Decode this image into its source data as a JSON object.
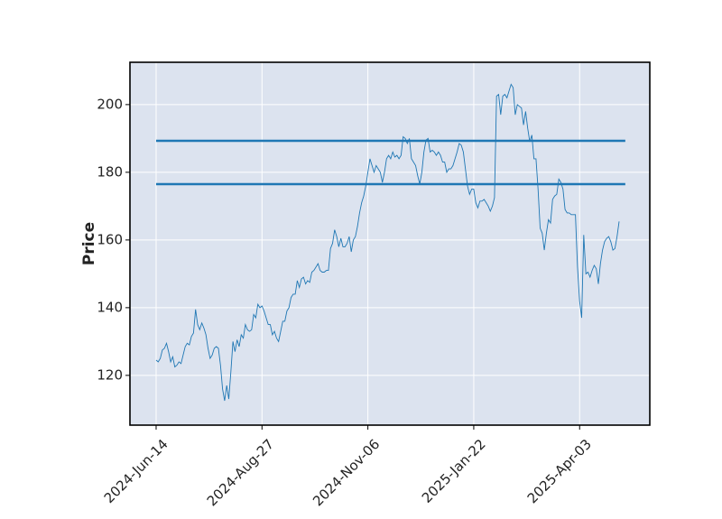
{
  "chart_data": {
    "type": "line",
    "ylabel": "Price",
    "series": [
      {
        "color": "#1f77b4",
        "values": [
          124.5,
          124,
          125,
          127.5,
          128,
          129.5,
          127,
          124,
          125.5,
          122.5,
          123,
          124,
          123.5,
          126,
          128.5,
          129.5,
          129,
          131.5,
          132.5,
          139.5,
          135,
          133.5,
          135.5,
          134,
          132,
          128,
          125,
          126,
          128,
          128.5,
          128,
          123,
          116,
          112.5,
          117,
          113,
          121,
          130,
          127,
          130.5,
          128.5,
          132,
          131,
          135,
          133.5,
          133,
          133.5,
          138,
          137,
          141,
          140,
          140.5,
          139,
          137,
          135,
          135,
          132,
          133,
          131,
          130,
          133,
          136,
          136,
          139,
          140,
          143,
          144,
          144,
          148,
          146,
          148.5,
          149,
          147,
          148,
          147.5,
          150.5,
          151,
          152,
          153,
          151,
          150.5,
          150.5,
          151,
          151,
          157.5,
          159,
          163,
          161,
          158,
          160.5,
          158,
          158,
          159,
          161,
          156.5,
          160,
          161,
          164,
          168,
          171,
          173,
          176,
          180,
          184,
          182,
          180,
          182,
          181,
          180,
          177,
          180,
          184,
          185,
          184,
          186,
          184.5,
          185,
          184,
          185,
          190.5,
          190,
          188.5,
          190,
          184,
          183,
          182,
          179,
          176.5,
          180,
          186,
          189.5,
          190,
          186,
          186.5,
          186,
          185,
          186,
          185,
          183,
          183,
          180,
          181,
          181,
          182,
          184,
          186,
          188.5,
          188,
          186,
          181,
          176,
          173.5,
          175,
          175,
          171,
          169.5,
          171.5,
          171.5,
          172,
          171,
          170,
          168.5,
          170,
          172.5,
          202.5,
          203,
          197,
          202.5,
          203,
          202,
          204,
          206,
          205,
          197,
          200,
          199.5,
          199,
          194,
          198,
          193,
          189,
          191,
          184,
          184,
          175,
          163.5,
          162,
          157,
          162,
          166,
          165,
          172,
          173,
          173.5,
          178,
          177,
          175,
          169,
          168,
          168,
          167.5,
          167.5,
          167.5,
          152,
          142,
          137,
          161.5,
          150,
          150.5,
          149,
          151,
          152.5,
          151.5,
          147,
          153,
          157,
          159.5,
          160.5,
          161,
          159.5,
          157,
          157.5,
          161,
          165.5
        ]
      }
    ],
    "hlines": [
      {
        "value": 189.3,
        "color": "#1f77b4"
      },
      {
        "value": 176.5,
        "color": "#1f77b4"
      }
    ],
    "xlim": [
      -12.6,
      237.8
    ],
    "xticks": [
      {
        "value": 0,
        "label": "2024-Jun-14"
      },
      {
        "value": 51,
        "label": "2024-Aug-27"
      },
      {
        "value": 102,
        "label": "2024-Nov-06"
      },
      {
        "value": 153,
        "label": "2025-Jan-22"
      },
      {
        "value": 204,
        "label": "2025-Apr-03"
      }
    ],
    "ylim": [
      105.3,
      212.5
    ],
    "yticks": [
      120,
      140,
      160,
      180,
      200
    ],
    "grid": true,
    "background": "#dce3ef"
  }
}
